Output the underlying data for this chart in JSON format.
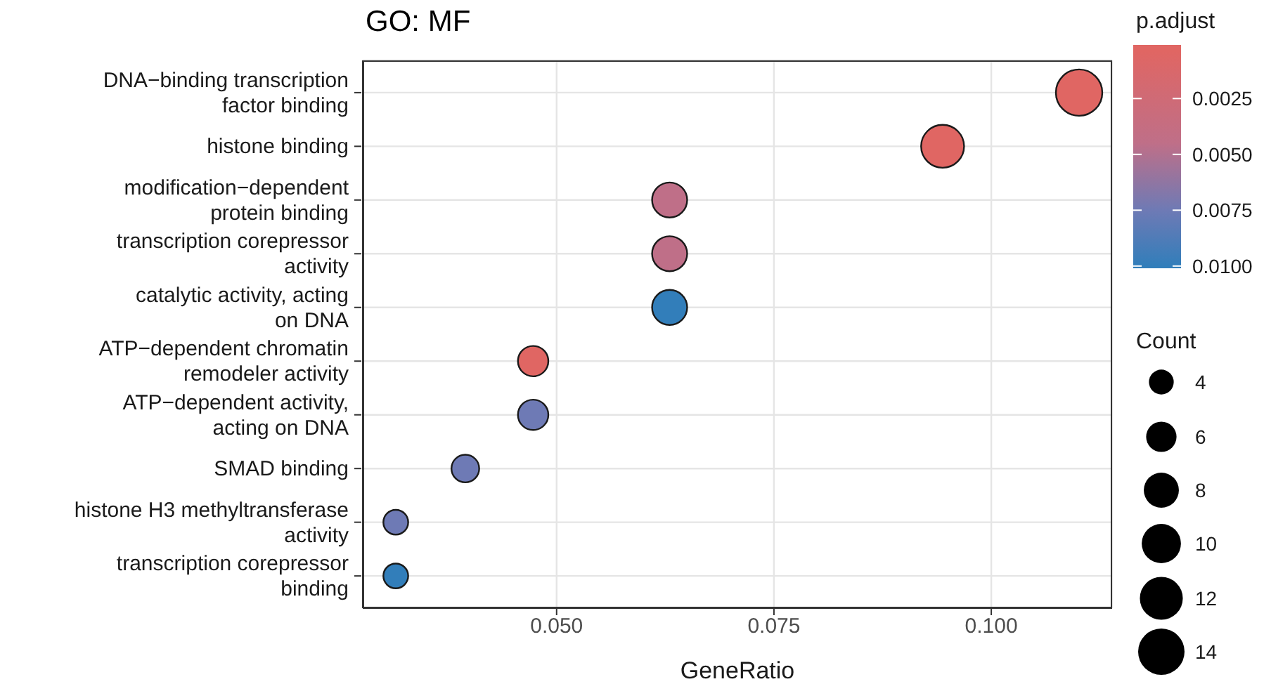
{
  "chart_data": {
    "type": "bubble",
    "title": "GO: MF",
    "xlabel": "GeneRatio",
    "clabel": "p.adjust",
    "legend_title": "Count",
    "orientation": "horizontal",
    "categories": [
      "DNA−binding transcription factor binding",
      "histone binding",
      "modification−dependent protein binding",
      "transcription corepressor activity",
      "catalytic activity, acting on DNA",
      "ATP−dependent chromatin remodeler activity",
      "ATP−dependent activity, acting on DNA",
      "SMAD binding",
      "histone H3 methyltransferase activity",
      "transcription corepressor binding"
    ],
    "values": [
      0.1101,
      0.0944,
      0.063,
      0.063,
      0.063,
      0.0473,
      0.0473,
      0.0395,
      0.0315,
      0.0315
    ],
    "sizes": [
      14,
      12,
      8,
      8,
      8,
      6,
      6,
      5,
      4,
      4
    ],
    "size_legend": [
      4,
      6,
      8,
      10,
      12,
      14
    ],
    "cvalues": [
      0.0002,
      0.0003,
      0.0045,
      0.0045,
      0.01,
      0.0004,
      0.0075,
      0.0075,
      0.0075,
      0.01
    ],
    "colors": [
      "#e06663",
      "#e06663",
      "#bf6f88",
      "#bf6f88",
      "#327eba",
      "#e06663",
      "#6e7ab5",
      "#6e7ab5",
      "#6e7ab5",
      "#327eba"
    ],
    "clim": [
      0.0001,
      0.0101
    ],
    "cticks": [
      0.0025,
      {
        "value": 0.005,
        "label": "0.0050"
      },
      0.0075,
      {
        "value": 0.01,
        "label": "0.0100"
      }
    ],
    "xlim": [
      0.0277,
      0.1139
    ],
    "xticks": [
      {
        "value": 0.05,
        "label": "0.050"
      },
      {
        "value": 0.075,
        "label": "0.075"
      },
      {
        "value": 0.1,
        "label": "0.100"
      }
    ],
    "grid": true,
    "marker": "circle"
  }
}
